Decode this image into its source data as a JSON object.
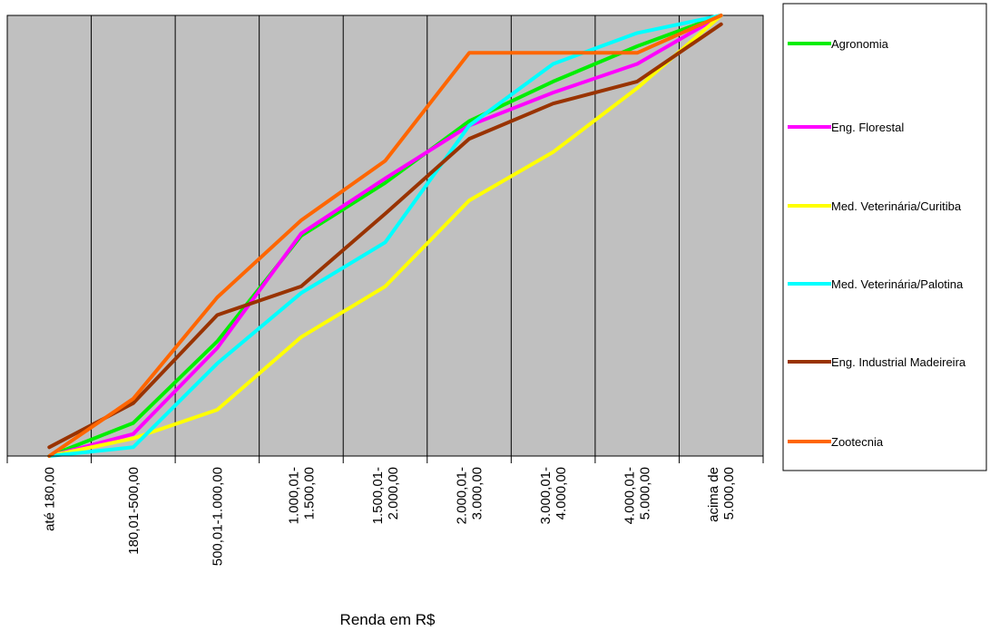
{
  "chart_data": {
    "type": "line",
    "xlabel": "Renda em R$",
    "ylabel": "",
    "ylim": [
      0,
      100
    ],
    "grid": "vertical",
    "legend_position": "right",
    "categories": [
      [
        "até 180,00"
      ],
      [
        "180,01-500,00"
      ],
      [
        "500,01-1.000,00"
      ],
      [
        "1.000,01-",
        "1.500,00"
      ],
      [
        "1.500,01-",
        "2.000,00"
      ],
      [
        "2.000,01-",
        "3.000,00"
      ],
      [
        "3.000,01-",
        "4.000,00"
      ],
      [
        "4.000,01-",
        "5.000,00"
      ],
      [
        "acima de",
        "5.000,00"
      ]
    ],
    "series": [
      {
        "name": "Agronomia",
        "color": "#00ee00",
        "values": [
          0,
          7.5,
          26,
          50,
          62,
          76,
          85,
          93,
          100
        ]
      },
      {
        "name": "Eng. Florestal",
        "color": "#ff00ff",
        "values": [
          0,
          5,
          24.5,
          50.5,
          63,
          75,
          82.5,
          89,
          100
        ]
      },
      {
        "name": "Med. Veterinária/Curitiba",
        "color": "#ffff00",
        "values": [
          0,
          4,
          10.5,
          27,
          38.5,
          58,
          69,
          83.5,
          100
        ]
      },
      {
        "name": "Med. Veterinária/Palotina",
        "color": "#00ffff",
        "values": [
          0,
          2,
          21,
          37,
          48.5,
          75,
          89,
          96,
          100
        ]
      },
      {
        "name": "Eng. Industrial Madeireira",
        "color": "#993300",
        "values": [
          2,
          12,
          32,
          38.5,
          55,
          72,
          80,
          85,
          98
        ]
      },
      {
        "name": "Zootecnia",
        "color": "#ff6600",
        "values": [
          0,
          13,
          36,
          53.5,
          67,
          91.5,
          91.5,
          91.5,
          100
        ]
      }
    ]
  }
}
